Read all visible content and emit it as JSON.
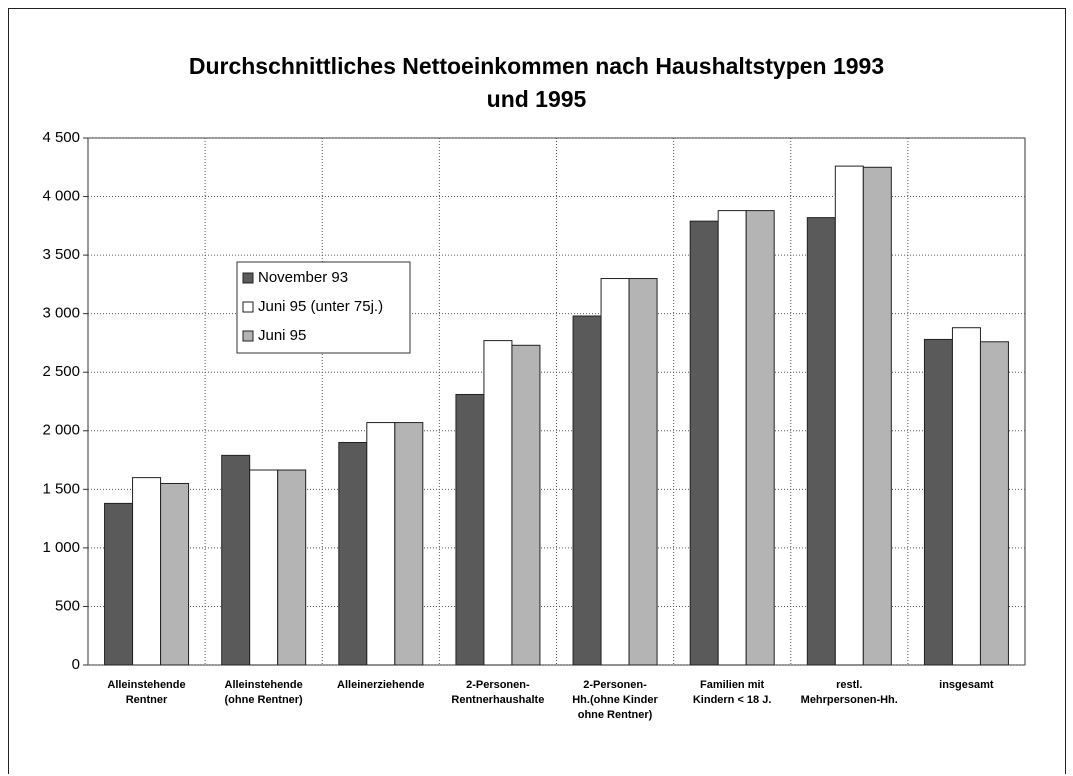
{
  "chart_data": {
    "type": "bar",
    "title": "Durchschnittliches Nettoeinkommen nach Haushaltstypen 1993\nund 1995",
    "categories": [
      "Alleinstehende\nRentner",
      "Alleinstehende\n(ohne Rentner)",
      "Alleinerziehende",
      "2-Personen-\nRentnerhaushalte",
      "2-Personen-\nHh.(ohne Kinder\nohne Rentner)",
      "Familien mit\nKindern < 18 J.",
      "restl.\nMehrpersonen-Hh.",
      "insgesamt"
    ],
    "series": [
      {
        "name": "November 93",
        "color": "#5a5a5a",
        "values": [
          1380,
          1790,
          1900,
          2310,
          2980,
          3790,
          3820,
          2780
        ]
      },
      {
        "name": "Juni 95 (unter 75j.)",
        "color": "#ffffff",
        "values": [
          1600,
          1665,
          2070,
          2770,
          3300,
          3880,
          4260,
          2880
        ]
      },
      {
        "name": "Juni 95",
        "color": "#b4b4b4",
        "values": [
          1550,
          1665,
          2070,
          2730,
          3300,
          3880,
          4250,
          2760
        ]
      }
    ],
    "ylim": [
      0,
      4500
    ],
    "yticks": [
      0,
      500,
      {
        "value": 1000,
        "label": "1 000"
      },
      {
        "value": 1500,
        "label": "1 500"
      },
      {
        "value": 2000,
        "label": "2 000"
      },
      {
        "value": 2500,
        "label": "2 500"
      },
      {
        "value": 3000,
        "label": "3 000"
      },
      {
        "value": 3500,
        "label": "3 500"
      },
      {
        "value": 4000,
        "label": "4 000"
      },
      {
        "value": 4500,
        "label": "4 500"
      }
    ],
    "grid": true
  }
}
